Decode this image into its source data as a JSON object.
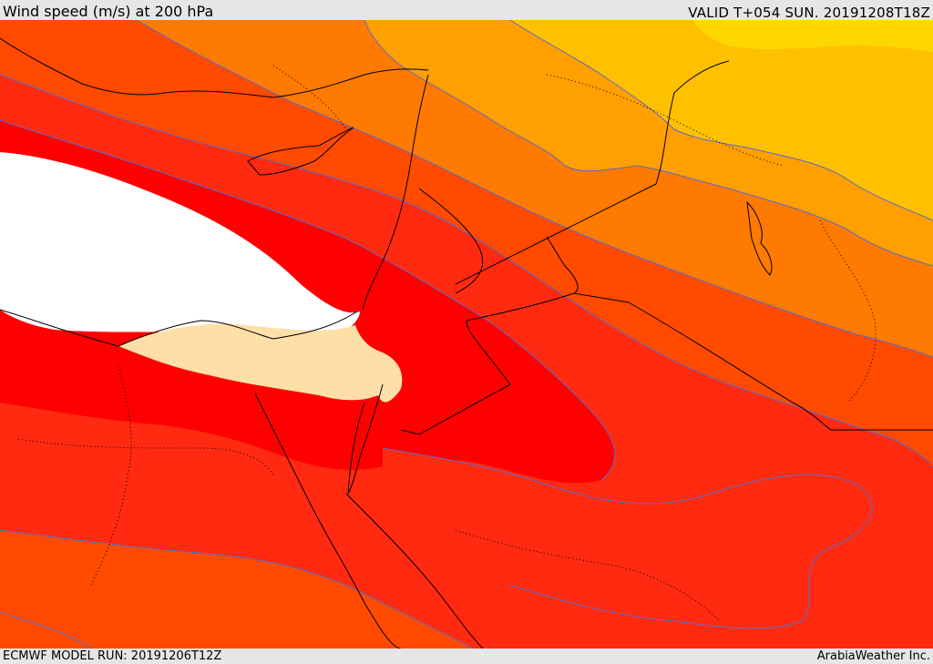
{
  "header": {
    "title": "Wind speed (m/s) at 200 hPa",
    "valid": "VALID T+054 SUN. 20191208T18Z"
  },
  "footer": {
    "model_run": "ECMWF MODEL RUN: 20191206T12Z",
    "credit": "ArabiaWeather Inc."
  },
  "colors": {
    "band_yellow": "#ffd700",
    "band_amber": "#ffc000",
    "band_orange_light": "#ff9f00",
    "band_orange": "#ff7a00",
    "band_orange_red": "#ff4a00",
    "band_red_orange": "#ff2a10",
    "band_red": "#ff0000",
    "band_tan": "#ffdfa8",
    "band_max": "#ffffff",
    "contour": "#5a6cc8",
    "borders": "#000000"
  }
}
